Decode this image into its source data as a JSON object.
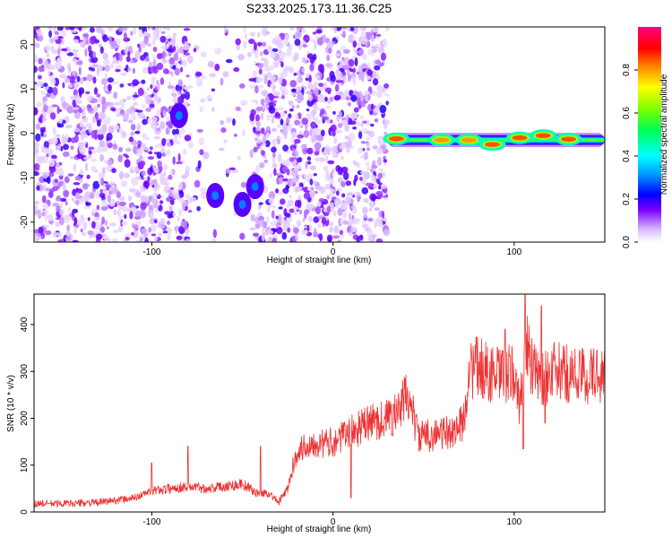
{
  "title": "S233.2025.173.11.36.C25",
  "chart_data": [
    {
      "type": "heatmap",
      "xlabel": "Height of straight line (km)",
      "ylabel": "Frequency (Hz)",
      "xlim": [
        -165,
        150
      ],
      "ylim": [
        -24.5,
        24
      ],
      "xticks": [
        -100,
        0,
        100
      ],
      "yticks": [
        -20,
        -10,
        0,
        10,
        20
      ],
      "colorbar": {
        "label": "Normalized spectral amplitude",
        "range": [
          0,
          1
        ],
        "ticks": [
          0.0,
          0.2,
          0.4,
          0.6,
          0.8
        ],
        "tick_labels": [
          "0.0",
          "0.2",
          "0.4",
          "0.6",
          "0.8"
        ],
        "colormap": "rainbow"
      },
      "regions": [
        {
          "x": [
            -165,
            30
          ],
          "freq": [
            -24.5,
            24
          ],
          "amplitude": "low, scattered speckle (0.0-0.2)"
        },
        {
          "x": [
            30,
            150
          ],
          "freq": [
            -2,
            -1
          ],
          "amplitude": "strong narrow band (0.4-0.9)"
        }
      ],
      "hotspots": [
        {
          "x": -85,
          "freq": 4,
          "amplitude": 0.3
        },
        {
          "x": -65,
          "freq": -14,
          "amplitude": 0.3
        },
        {
          "x": -50,
          "freq": -16,
          "amplitude": 0.3
        },
        {
          "x": -43,
          "freq": -12,
          "amplitude": 0.3
        }
      ],
      "band_peaks": [
        {
          "x": 35,
          "freq": -1.2,
          "amplitude": 0.85
        },
        {
          "x": 60,
          "freq": -1.5,
          "amplitude": 0.8
        },
        {
          "x": 75,
          "freq": -1.5,
          "amplitude": 0.8
        },
        {
          "x": 88,
          "freq": -2.5,
          "amplitude": 0.85
        },
        {
          "x": 103,
          "freq": -1.0,
          "amplitude": 0.85
        },
        {
          "x": 116,
          "freq": -0.5,
          "amplitude": 0.85
        },
        {
          "x": 130,
          "freq": -1.3,
          "amplitude": 0.85
        }
      ]
    },
    {
      "type": "line",
      "xlabel": "Height of straight line (km)",
      "ylabel": "SNR (10 * v/v)",
      "xlim": [
        -165,
        150
      ],
      "ylim": [
        0,
        465
      ],
      "xticks": [
        -100,
        0,
        100
      ],
      "yticks": [
        0,
        100,
        200,
        300,
        400
      ],
      "color": "#ee3333",
      "series": [
        {
          "x": [
            -165,
            -150,
            -130,
            -110,
            -100,
            -90,
            -80,
            -70,
            -60,
            -50,
            -42,
            -35,
            -30,
            -25,
            -20,
            -15,
            -10,
            -5,
            0,
            10,
            20,
            30,
            37,
            40,
            43,
            47,
            55,
            65,
            72,
            75,
            80,
            90,
            100,
            103,
            106,
            110,
            116,
            120,
            130,
            140,
            150
          ],
          "values": [
            18,
            18,
            20,
            30,
            45,
            50,
            55,
            50,
            55,
            60,
            40,
            40,
            20,
            50,
            130,
            140,
            150,
            145,
            150,
            170,
            190,
            200,
            215,
            250,
            230,
            160,
            165,
            170,
            190,
            300,
            310,
            290,
            295,
            220,
            380,
            300,
            280,
            300,
            295,
            290,
            295
          ],
          "spikes": [
            {
              "x": -100,
              "value": 105
            },
            {
              "x": -80,
              "value": 140
            },
            {
              "x": -40,
              "value": 140
            },
            {
              "x": 10,
              "value": 30
            },
            {
              "x": 95,
              "value": 390
            },
            {
              "x": 105,
              "value": 135
            },
            {
              "x": 106,
              "value": 465
            },
            {
              "x": 115,
              "value": 440
            },
            {
              "x": 117,
              "value": 190
            }
          ]
        }
      ]
    }
  ]
}
